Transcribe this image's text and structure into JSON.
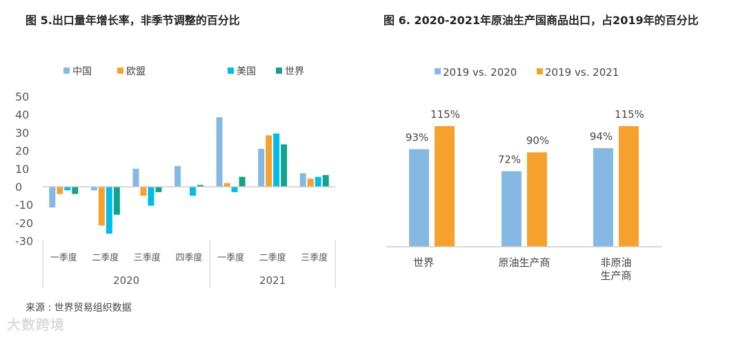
{
  "chart_data": [
    {
      "type": "bar",
      "title": "图 5.出口量年增长率，非季节调整的百分比",
      "categories": [
        "一季度",
        "二季度",
        "三季度",
        "四季度",
        "一季度",
        "二季度",
        "三季度"
      ],
      "groups": [
        {
          "label": "2020",
          "count": 4
        },
        {
          "label": "2021",
          "count": 3
        }
      ],
      "ylim": [
        -30,
        50
      ],
      "yticks": [
        "50",
        "40",
        "30",
        "20",
        "10",
        "0",
        "-10",
        "-20",
        "-30"
      ],
      "legend_position": "top",
      "series": [
        {
          "name": "中国",
          "color": "#85b9e4",
          "values": [
            -11.5,
            -2,
            10,
            11.5,
            38.5,
            21,
            7.5
          ]
        },
        {
          "name": "欧盟",
          "color": "#f7a12d",
          "values": [
            -4,
            -21.5,
            -5,
            0,
            2,
            28.5,
            4.5
          ]
        },
        {
          "name": "美国",
          "color": "#00bce8",
          "values": [
            -2,
            -26,
            -10.5,
            -5,
            -3,
            29.5,
            5.5
          ]
        },
        {
          "name": "世界",
          "color": "#12a18a",
          "values": [
            -4,
            -15.5,
            -3,
            1,
            5.5,
            23.5,
            6.5
          ]
        }
      ]
    },
    {
      "type": "bar",
      "title": "图 6. 2020-2021年原油生产国商品出口，占2019年的百分比",
      "categories": [
        [
          "世界"
        ],
        [
          "原油生产商"
        ],
        [
          "非原油",
          "生产商"
        ]
      ],
      "legend_position": "top",
      "series": [
        {
          "name": "2019 vs. 2020",
          "color": "#85b9e4",
          "values": [
            93,
            72,
            94
          ],
          "labels": [
            "93%",
            "72%",
            "94%"
          ]
        },
        {
          "name": "2019 vs. 2021",
          "color": "#f7a12d",
          "values": [
            115,
            90,
            115
          ],
          "labels": [
            "115%",
            "90%",
            "115%"
          ]
        }
      ]
    }
  ],
  "source": "来源 : 世界贸易组织数据",
  "watermark": "大数跨境"
}
